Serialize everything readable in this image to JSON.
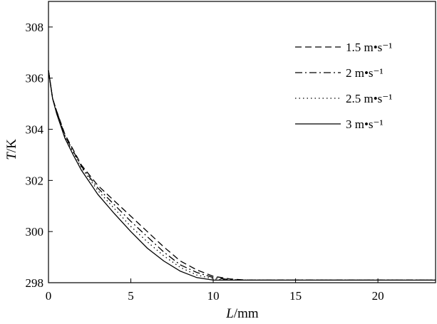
{
  "chart_data": {
    "type": "line",
    "xlabel": {
      "var": "L",
      "unit": "/mm"
    },
    "ylabel": {
      "var": "T",
      "unit": "/K"
    },
    "xlim": [
      0,
      23.5
    ],
    "ylim": [
      298,
      309
    ],
    "xticks": [
      0,
      5,
      10,
      15,
      20
    ],
    "yticks": [
      298,
      300,
      302,
      304,
      306,
      308
    ],
    "grid": false,
    "legend_position": "top-right",
    "series": [
      {
        "name": "1.5 m•s⁻¹",
        "style": "dashed",
        "x": [
          0,
          0.25,
          0.5,
          1,
          1.5,
          2,
          3,
          4,
          5,
          6,
          7,
          8,
          9,
          10,
          11,
          12,
          23.5
        ],
        "y": [
          306.3,
          305.2,
          304.7,
          303.8,
          303.2,
          302.6,
          301.8,
          301.2,
          300.6,
          300.0,
          299.4,
          298.85,
          298.5,
          298.25,
          298.15,
          298.1,
          298.1
        ]
      },
      {
        "name": "2 m•s⁻¹",
        "style": "dashdot",
        "x": [
          0,
          0.25,
          0.5,
          1,
          1.5,
          2,
          3,
          4,
          5,
          6,
          7,
          8,
          9,
          10,
          11,
          12,
          23.5
        ],
        "y": [
          306.3,
          305.2,
          304.7,
          303.75,
          303.15,
          302.55,
          301.7,
          301.05,
          300.4,
          299.8,
          299.2,
          298.7,
          298.4,
          298.2,
          298.12,
          298.1,
          298.1
        ]
      },
      {
        "name": "2.5 m•s⁻¹",
        "style": "dotted",
        "x": [
          0,
          0.25,
          0.5,
          1,
          1.5,
          2,
          3,
          4,
          5,
          6,
          7,
          8,
          9,
          10,
          11,
          12,
          23.5
        ],
        "y": [
          306.3,
          305.2,
          304.7,
          303.7,
          303.1,
          302.5,
          301.6,
          300.9,
          300.2,
          299.6,
          299.05,
          298.6,
          298.3,
          298.15,
          298.1,
          298.1,
          298.1
        ]
      },
      {
        "name": "3 m•s⁻¹",
        "style": "solid",
        "x": [
          0,
          0.25,
          0.5,
          1,
          1.5,
          2,
          3,
          4,
          5,
          6,
          7,
          8,
          9,
          10,
          11,
          12,
          23.5
        ],
        "y": [
          306.3,
          305.2,
          304.6,
          303.65,
          303.0,
          302.4,
          301.45,
          300.7,
          300.0,
          299.35,
          298.85,
          298.45,
          298.2,
          298.1,
          298.1,
          298.1,
          298.1
        ]
      }
    ]
  }
}
